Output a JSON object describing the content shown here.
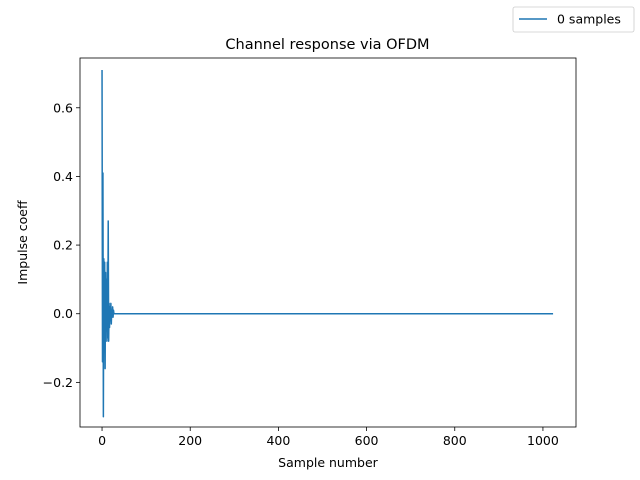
{
  "chart_data": {
    "type": "line",
    "title": "Channel response via OFDM",
    "xlabel": "Sample number",
    "ylabel": "Impulse coeff",
    "xlim": [
      -50,
      1075
    ],
    "ylim": [
      -0.33,
      0.745
    ],
    "xticks": [
      0,
      200,
      400,
      600,
      800,
      1000
    ],
    "yticks": [
      -0.2,
      0.0,
      0.2,
      0.4,
      0.6
    ],
    "ytick_labels": [
      "−0.2",
      "0.0",
      "0.2",
      "0.4",
      "0.6"
    ],
    "legend": {
      "placement": "outside-top-right",
      "entries": [
        "0 samples"
      ]
    },
    "grid": false,
    "colors": {
      "series": "#1f77b4"
    },
    "series": [
      {
        "name": "0 samples",
        "x": [
          0,
          1,
          2,
          3,
          4,
          5,
          6,
          7,
          8,
          9,
          10,
          11,
          12,
          13,
          14,
          15,
          16,
          17,
          18,
          19,
          20,
          21,
          22,
          23,
          24,
          25,
          26,
          27,
          28,
          29,
          30,
          1023
        ],
        "values": [
          0.71,
          -0.14,
          0.41,
          -0.3,
          0.16,
          -0.06,
          0.15,
          -0.16,
          0.12,
          -0.05,
          0.1,
          -0.08,
          0.15,
          -0.07,
          0.27,
          -0.08,
          0.03,
          -0.04,
          0.02,
          -0.02,
          0.03,
          -0.03,
          0.01,
          -0.01,
          0.02,
          -0.01,
          0.01,
          0.0,
          0.0,
          0.0,
          0.0,
          0.0
        ]
      }
    ]
  }
}
